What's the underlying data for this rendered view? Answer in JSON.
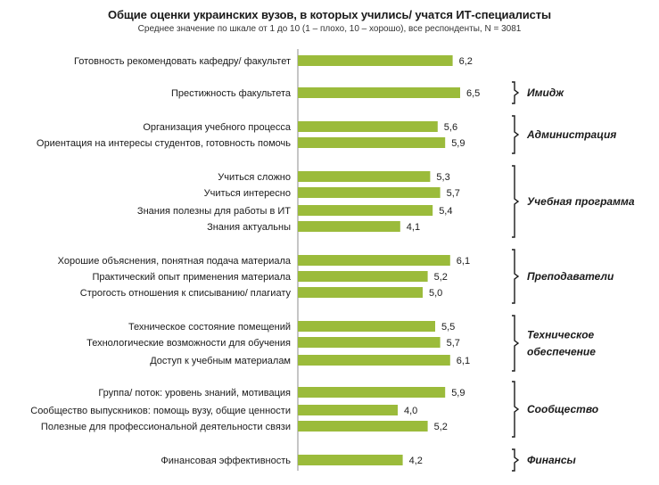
{
  "chart_data": {
    "type": "bar",
    "orientation": "horizontal",
    "title": "Общие оценки украинских вузов, в которых учились/ учатся ИТ-специалисты",
    "subtitle": "Среднее значение по шкале от 1 до 10 (1 – плохо, 10 – хорошо), все респонденты, N = 3081",
    "xlim": [
      0,
      10
    ],
    "grid": false,
    "bar_color": "#9bbb3b",
    "categories": [
      "Готовность рекомендовать кафедру/ факультет",
      "Престижность факультета",
      "Организация учебного процесса",
      "Ориентация на интересы студентов, готовность помочь",
      "Учиться сложно",
      "Учиться интересно",
      "Знания полезны для работы в ИТ",
      "Знания актуальны",
      "Хорошие объяснения, понятная подача материала",
      "Практический опыт применения материала",
      "Строгость отношения к списыванию/ плагиату",
      "Техническое состояние помещений",
      "Технологические возможности для обучения",
      "Доступ к учебным материалам",
      "Группа/ поток: уровень знаний, мотивация",
      "Сообщество выпускников: помощь вузу, общие ценности",
      "Полезные для профессиональной деятельности связи",
      "Финансовая эффективность"
    ],
    "values": [
      6.2,
      6.5,
      5.6,
      5.9,
      5.3,
      5.7,
      5.4,
      4.1,
      6.1,
      5.2,
      5.0,
      5.5,
      5.7,
      6.1,
      5.9,
      4.0,
      5.2,
      4.2
    ],
    "value_labels": [
      "6,2",
      "6,5",
      "5,6",
      "5,9",
      "5,3",
      "5,7",
      "5,4",
      "4,1",
      "6,1",
      "5,2",
      "5,0",
      "5,5",
      "5,7",
      "6,1",
      "5,9",
      "4,0",
      "5,2",
      "4,2"
    ],
    "groups": [
      {
        "label_lines": [
          "Имидж"
        ],
        "first": 1,
        "last": 1
      },
      {
        "label_lines": [
          "Администрация"
        ],
        "first": 2,
        "last": 3
      },
      {
        "label_lines": [
          "Учебная программа"
        ],
        "first": 4,
        "last": 7
      },
      {
        "label_lines": [
          "Преподаватели"
        ],
        "first": 8,
        "last": 10
      },
      {
        "label_lines": [
          "Техническое",
          "обеспечение"
        ],
        "first": 11,
        "last": 13
      },
      {
        "label_lines": [
          "Сообщество"
        ],
        "first": 14,
        "last": 16
      },
      {
        "label_lines": [
          "Финансы"
        ],
        "first": 17,
        "last": 17
      }
    ]
  }
}
